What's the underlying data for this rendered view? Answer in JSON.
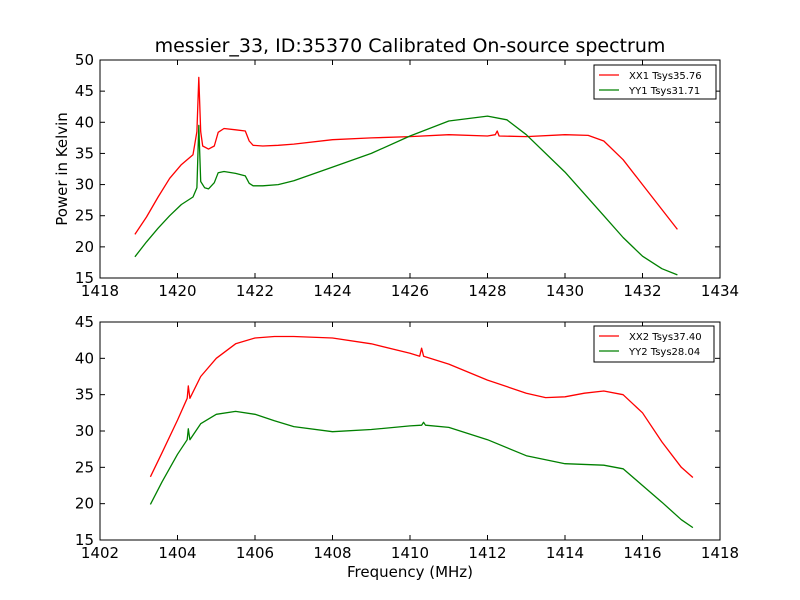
{
  "chart_data": [
    {
      "type": "line",
      "title": "messier_33, ID:35370 Calibrated On-source spectrum",
      "xlabel": "",
      "ylabel": "Power in Kelvin",
      "xlim": [
        1418,
        1434
      ],
      "ylim": [
        15,
        50
      ],
      "xticks": [
        "1418",
        "1420",
        "1422",
        "1424",
        "1426",
        "1428",
        "1430",
        "1432",
        "1434"
      ],
      "yticks": [
        "15",
        "20",
        "25",
        "30",
        "35",
        "40",
        "45",
        "50"
      ],
      "legend_position": "top-right",
      "grid": false,
      "series": [
        {
          "name": "XX1 Tsys35.76",
          "color": "#ff0000",
          "x": [
            1418.9,
            1419.2,
            1419.5,
            1419.8,
            1420.1,
            1420.4,
            1420.5,
            1420.55,
            1420.6,
            1420.65,
            1420.8,
            1420.95,
            1421.05,
            1421.2,
            1421.5,
            1421.75,
            1421.85,
            1421.95,
            1422.2,
            1422.6,
            1423.0,
            1424.0,
            1425.0,
            1426.0,
            1427.0,
            1428.0,
            1428.2,
            1428.25,
            1428.3,
            1429.0,
            1430.0,
            1430.6,
            1431.0,
            1431.5,
            1432.0,
            1432.5,
            1432.9
          ],
          "y": [
            22.0,
            24.8,
            28.0,
            31.0,
            33.2,
            34.8,
            38.5,
            47.2,
            38.5,
            36.2,
            35.7,
            36.2,
            38.4,
            39.0,
            38.8,
            38.6,
            37.0,
            36.3,
            36.2,
            36.3,
            36.5,
            37.2,
            37.5,
            37.7,
            38.0,
            37.8,
            38.0,
            38.6,
            37.8,
            37.7,
            38.0,
            37.9,
            37.0,
            34.0,
            30.0,
            26.0,
            22.8
          ]
        },
        {
          "name": "YY1 Tsys31.71",
          "color": "#008000",
          "x": [
            1418.9,
            1419.2,
            1419.5,
            1419.8,
            1420.1,
            1420.4,
            1420.5,
            1420.55,
            1420.6,
            1420.7,
            1420.8,
            1420.95,
            1421.05,
            1421.2,
            1421.5,
            1421.75,
            1421.85,
            1421.95,
            1422.2,
            1422.6,
            1423.0,
            1424.0,
            1425.0,
            1426.0,
            1427.0,
            1428.0,
            1428.5,
            1429.0,
            1430.0,
            1431.0,
            1431.5,
            1432.0,
            1432.5,
            1432.9
          ],
          "y": [
            18.4,
            20.8,
            23.0,
            25.0,
            26.8,
            28.0,
            29.5,
            39.5,
            30.5,
            29.5,
            29.3,
            30.3,
            31.9,
            32.1,
            31.8,
            31.4,
            30.2,
            29.8,
            29.8,
            30.0,
            30.6,
            32.8,
            35.0,
            37.8,
            40.2,
            41.0,
            40.4,
            38.0,
            32.0,
            25.0,
            21.5,
            18.5,
            16.5,
            15.5
          ]
        }
      ]
    },
    {
      "type": "line",
      "title": "",
      "xlabel": "Frequency (MHz)",
      "ylabel": "",
      "xlim": [
        1402,
        1418
      ],
      "ylim": [
        15,
        45
      ],
      "xticks": [
        "1402",
        "1404",
        "1406",
        "1408",
        "1410",
        "1412",
        "1414",
        "1416",
        "1418"
      ],
      "yticks": [
        "15",
        "20",
        "25",
        "30",
        "35",
        "40",
        "45"
      ],
      "legend_position": "top-right",
      "grid": false,
      "series": [
        {
          "name": "XX2 Tsys37.40",
          "color": "#ff0000",
          "x": [
            1403.3,
            1403.6,
            1404.0,
            1404.25,
            1404.28,
            1404.32,
            1404.6,
            1405.0,
            1405.5,
            1406.0,
            1406.5,
            1407.0,
            1408.0,
            1409.0,
            1410.0,
            1410.25,
            1410.3,
            1410.35,
            1411.0,
            1412.0,
            1413.0,
            1413.5,
            1414.0,
            1414.5,
            1415.0,
            1415.5,
            1416.0,
            1416.5,
            1417.0,
            1417.3
          ],
          "y": [
            23.7,
            27.0,
            31.5,
            34.5,
            36.2,
            34.5,
            37.5,
            40.0,
            42.0,
            42.8,
            43.0,
            43.0,
            42.8,
            42.0,
            40.7,
            40.3,
            41.4,
            40.3,
            39.2,
            37.0,
            35.2,
            34.6,
            34.7,
            35.2,
            35.5,
            35.0,
            32.5,
            28.5,
            25.0,
            23.6
          ]
        },
        {
          "name": "YY2 Tsys28.04",
          "color": "#008000",
          "x": [
            1403.3,
            1403.6,
            1404.0,
            1404.25,
            1404.28,
            1404.32,
            1404.6,
            1405.0,
            1405.5,
            1406.0,
            1406.5,
            1407.0,
            1408.0,
            1409.0,
            1410.0,
            1410.3,
            1410.35,
            1410.4,
            1411.0,
            1412.0,
            1413.0,
            1414.0,
            1415.0,
            1415.5,
            1416.0,
            1416.5,
            1417.0,
            1417.3
          ],
          "y": [
            19.9,
            23.0,
            26.8,
            28.8,
            30.3,
            28.8,
            31.0,
            32.3,
            32.7,
            32.3,
            31.4,
            30.6,
            29.9,
            30.2,
            30.7,
            30.8,
            31.2,
            30.8,
            30.5,
            28.8,
            26.6,
            25.5,
            25.3,
            24.8,
            22.5,
            20.2,
            17.8,
            16.7
          ]
        }
      ]
    }
  ]
}
